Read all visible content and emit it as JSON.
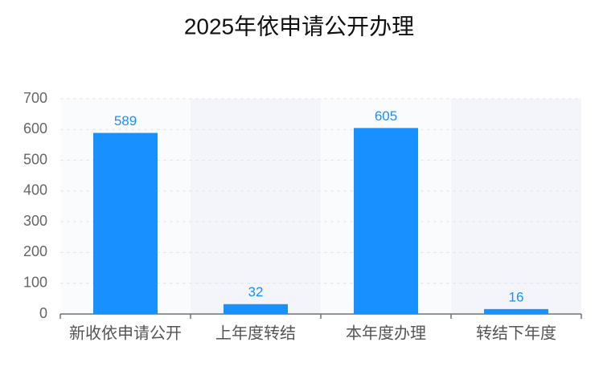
{
  "chart_data": {
    "type": "bar",
    "title": "2025年依申请公开办理",
    "categories": [
      "新收依申请公开",
      "上年度转结",
      "本年度办理",
      "转结下年度"
    ],
    "values": [
      589,
      32,
      605,
      16
    ],
    "color": "#1890ff",
    "ylim": [
      0,
      700
    ],
    "yticks": [
      0,
      100,
      200,
      300,
      400,
      500,
      600,
      700
    ],
    "grid": true,
    "data_labels": true
  }
}
